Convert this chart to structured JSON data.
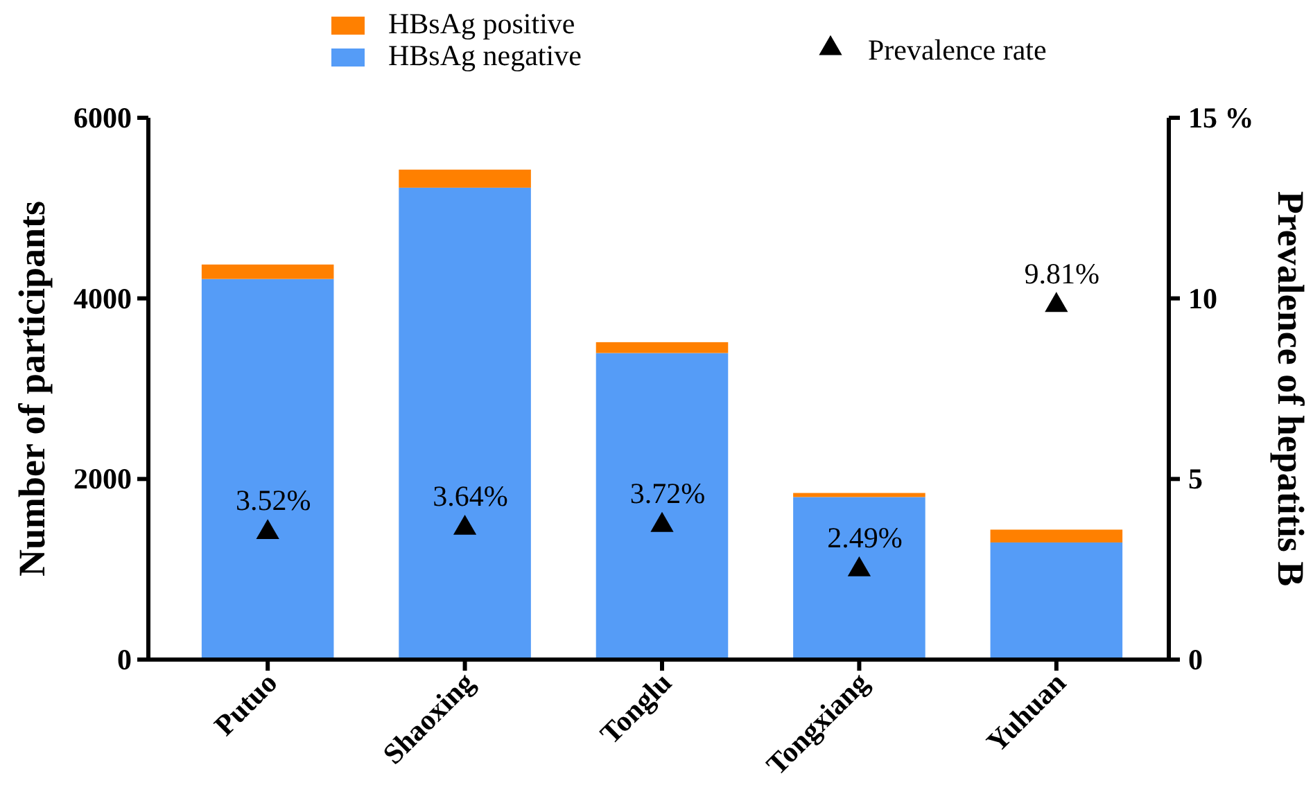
{
  "chart_data": {
    "type": "bar",
    "stacked": true,
    "categories": [
      "Putuo",
      "Shaoxing",
      "Tonglu",
      "Tongxiang",
      "Yuhuan"
    ],
    "ylabel": "Number of participants",
    "y2label": "Prevalence of hepatitis B",
    "ylim": [
      0,
      6000
    ],
    "yticks": [
      0,
      2000,
      4000,
      6000
    ],
    "y2lim": [
      0,
      15
    ],
    "y2ticks": [
      0,
      5,
      10,
      {
        "value": 15,
        "label": "15 %"
      }
    ],
    "legend": "top",
    "grid": false,
    "series": [
      {
        "name": "HBsAg negative",
        "color": "#559cf7",
        "values": [
          4215,
          5226,
          3395,
          1800,
          1297
        ]
      },
      {
        "name": "HBsAg positive",
        "color": "#ff8000",
        "values": [
          160,
          200,
          120,
          45,
          142
        ]
      },
      {
        "name": "Prevalence rate",
        "type": "scatter",
        "axis": "y2",
        "marker": "triangle",
        "color": "#000000",
        "values": [
          3.52,
          3.64,
          3.72,
          2.49,
          9.81
        ],
        "value_labels": [
          "3.52%",
          "3.64%",
          "3.72%",
          "2.49%",
          "9.81%"
        ]
      }
    ]
  }
}
